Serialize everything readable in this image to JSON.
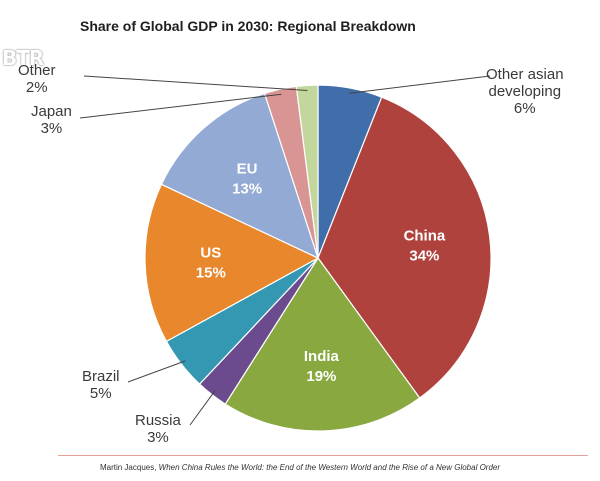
{
  "chart_data": {
    "type": "pie",
    "title": "Share of Global GDP in 2030: Regional Breakdown",
    "slices": [
      {
        "label": "Other asian developing",
        "label_lines": [
          "Other asian",
          "developing"
        ],
        "value": 6,
        "value_text": "6%",
        "color": "#3f6eaa"
      },
      {
        "label": "China",
        "value": 34,
        "value_text": "34%",
        "color": "#b0423e"
      },
      {
        "label": "India",
        "value": 19,
        "value_text": "19%",
        "color": "#89a83f"
      },
      {
        "label": "Russia",
        "value": 3,
        "value_text": "3%",
        "color": "#6b4b8e"
      },
      {
        "label": "Brazil",
        "value": 5,
        "value_text": "5%",
        "color": "#3598b2"
      },
      {
        "label": "US",
        "value": 15,
        "value_text": "15%",
        "color": "#e8872b"
      },
      {
        "label": "EU",
        "value": 13,
        "value_text": "13%",
        "color": "#93aad4"
      },
      {
        "label": "Japan",
        "value": 3,
        "value_text": "3%",
        "color": "#d99594"
      },
      {
        "label": "Other",
        "value": 2,
        "value_text": "2%",
        "color": "#c3d69b"
      }
    ]
  },
  "watermark": "BTR",
  "source": {
    "author": "Martin Jacques,",
    "title": "When China Rules the World: the End of the Western World and the Rise of a New Global Order"
  }
}
